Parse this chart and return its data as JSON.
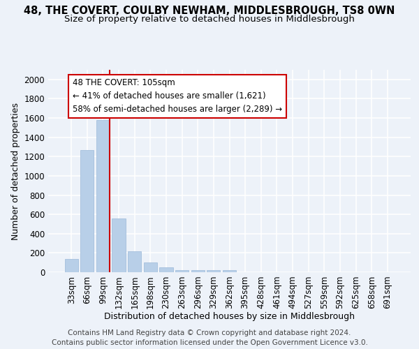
{
  "title": "48, THE COVERT, COULBY NEWHAM, MIDDLESBROUGH, TS8 0WN",
  "subtitle": "Size of property relative to detached houses in Middlesbrough",
  "xlabel": "Distribution of detached houses by size in Middlesbrough",
  "ylabel": "Number of detached properties",
  "footer_line1": "Contains HM Land Registry data © Crown copyright and database right 2024.",
  "footer_line2": "Contains public sector information licensed under the Open Government Licence v3.0.",
  "categories": [
    "33sqm",
    "66sqm",
    "99sqm",
    "132sqm",
    "165sqm",
    "198sqm",
    "230sqm",
    "263sqm",
    "296sqm",
    "329sqm",
    "362sqm",
    "395sqm",
    "428sqm",
    "461sqm",
    "494sqm",
    "527sqm",
    "559sqm",
    "592sqm",
    "625sqm",
    "658sqm",
    "691sqm"
  ],
  "values": [
    140,
    1270,
    1580,
    560,
    220,
    100,
    50,
    25,
    20,
    20,
    20,
    0,
    0,
    0,
    0,
    0,
    0,
    0,
    0,
    0,
    0
  ],
  "bar_color": "#b8cfe8",
  "bar_edge_color": "#9ab8d8",
  "vline_color": "#cc0000",
  "annotation_text_line1": "48 THE COVERT: 105sqm",
  "annotation_text_line2": "← 41% of detached houses are smaller (1,621)",
  "annotation_text_line3": "58% of semi-detached houses are larger (2,289) →",
  "annotation_edge_color": "#cc0000",
  "ylim": [
    0,
    2100
  ],
  "yticks": [
    0,
    200,
    400,
    600,
    800,
    1000,
    1200,
    1400,
    1600,
    1800,
    2000
  ],
  "bg_color": "#edf2f9",
  "grid_color": "#ffffff",
  "title_fontsize": 10.5,
  "subtitle_fontsize": 9.5,
  "label_fontsize": 9,
  "tick_fontsize": 8.5,
  "footer_fontsize": 7.5
}
